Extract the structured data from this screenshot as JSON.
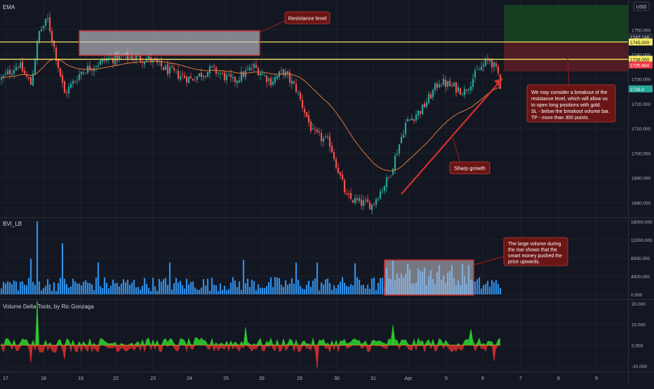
{
  "panes": {
    "main_label": "EMA",
    "bvi_label": "BVI_LB",
    "vd_label": "Volume Delta Tools, by Ric Gonzaga"
  },
  "currency": "USD",
  "price_axis": {
    "ticks": [
      "1750.000",
      "1740.000",
      "1730.000",
      "1720.000",
      "1710.000",
      "1700.000",
      "1690.000",
      "1680.000"
    ],
    "tick_values": [
      1750,
      1740,
      1730,
      1720,
      1710,
      1700,
      1690,
      1680
    ],
    "badges": [
      {
        "text": "1747.148",
        "value": 1747.148,
        "bg": "#2a2e39",
        "fg": "#d1d4dc"
      },
      {
        "text": "1745.000",
        "value": 1745.0,
        "bg": "#f5e663",
        "fg": "#131722"
      },
      {
        "text": "1738.000",
        "value": 1738.0,
        "bg": "#f5e663",
        "fg": "#131722"
      },
      {
        "text": "1735.684",
        "value": 1735.684,
        "bg": "#f23645",
        "fg": "#ffffff"
      },
      {
        "text": "1726.0",
        "value": 1726.0,
        "bg": "#26a69a",
        "fg": "#ffffff"
      }
    ]
  },
  "bvi_axis": {
    "ticks": [
      "16000.000",
      "12000.000",
      "8000.000",
      "4000.000",
      "0.000"
    ],
    "tick_values": [
      16000,
      12000,
      8000,
      4000,
      0
    ]
  },
  "vd_axis": {
    "ticks": [
      "20.000",
      "10.000",
      "0.000",
      "-10.000"
    ],
    "tick_values": [
      20,
      10,
      0,
      -10
    ]
  },
  "time_axis": [
    "17",
    "18",
    "19",
    "22",
    "23",
    "24",
    "25",
    "26",
    "29",
    "30",
    "31",
    "Apr",
    "5",
    "6",
    "7",
    "8",
    "9"
  ],
  "annotations": {
    "resistance": "Resistance level",
    "breakout": [
      "We may consider a breakout of the",
      "resistance level, which will allow us",
      "to open long positions with gold.",
      "SL - below the breakout volume bar.",
      "TP - more than 300 points."
    ],
    "sharp": "Sharp growth",
    "volume": [
      "The large volume during",
      "the rise shows that the",
      "smart money pushed the",
      "price upwards."
    ]
  },
  "chart_data": {
    "type": "candlestick",
    "instrument": "Gold",
    "levels": {
      "resistance_upper": 1745.0,
      "resistance_lower": 1738.0,
      "take_profit_zone_top": 1760.0,
      "stop_zone_bottom": 1733.0
    },
    "price_ylim": [
      1674,
      1762
    ],
    "bvi_ylim": [
      0,
      16000
    ],
    "vd_ylim": [
      -12,
      21
    ],
    "price_path": [
      {
        "i": 0,
        "p": 1730
      },
      {
        "i": 8,
        "p": 1736
      },
      {
        "i": 14,
        "p": 1728
      },
      {
        "i": 18,
        "p": 1749
      },
      {
        "i": 22,
        "p": 1754
      },
      {
        "i": 30,
        "p": 1724
      },
      {
        "i": 38,
        "p": 1733
      },
      {
        "i": 50,
        "p": 1738
      },
      {
        "i": 60,
        "p": 1739
      },
      {
        "i": 70,
        "p": 1738
      },
      {
        "i": 80,
        "p": 1733
      },
      {
        "i": 90,
        "p": 1730
      },
      {
        "i": 100,
        "p": 1734
      },
      {
        "i": 110,
        "p": 1729
      },
      {
        "i": 120,
        "p": 1735
      },
      {
        "i": 128,
        "p": 1729
      },
      {
        "i": 134,
        "p": 1733
      },
      {
        "i": 140,
        "p": 1726
      },
      {
        "i": 148,
        "p": 1708
      },
      {
        "i": 156,
        "p": 1704
      },
      {
        "i": 164,
        "p": 1682
      },
      {
        "i": 170,
        "p": 1680
      },
      {
        "i": 176,
        "p": 1679
      },
      {
        "i": 184,
        "p": 1690
      },
      {
        "i": 192,
        "p": 1712
      },
      {
        "i": 200,
        "p": 1718
      },
      {
        "i": 208,
        "p": 1729
      },
      {
        "i": 214,
        "p": 1727
      },
      {
        "i": 220,
        "p": 1725
      },
      {
        "i": 226,
        "p": 1733
      },
      {
        "i": 232,
        "p": 1738
      },
      {
        "i": 236,
        "p": 1732
      }
    ],
    "volume_spikes": [
      {
        "i": 14,
        "v": 7800
      },
      {
        "i": 17,
        "v": 16000
      },
      {
        "i": 29,
        "v": 11200
      },
      {
        "i": 46,
        "v": 7000
      },
      {
        "i": 80,
        "v": 7000
      },
      {
        "i": 115,
        "v": 7600
      },
      {
        "i": 140,
        "v": 7000
      },
      {
        "i": 150,
        "v": 7000
      },
      {
        "i": 168,
        "v": 6800
      },
      {
        "i": 186,
        "v": 7400
      },
      {
        "i": 222,
        "v": 6400
      }
    ],
    "volume_highlight_range": [
      183,
      223
    ],
    "delta_spikes": [
      {
        "i": 17,
        "v": 21
      },
      {
        "i": 14,
        "v": -8
      },
      {
        "i": 30,
        "v": -6
      },
      {
        "i": 116,
        "v": 8
      },
      {
        "i": 150,
        "v": -11
      },
      {
        "i": 186,
        "v": 9
      },
      {
        "i": 223,
        "v": 7
      },
      {
        "i": 234,
        "v": -7
      }
    ]
  }
}
